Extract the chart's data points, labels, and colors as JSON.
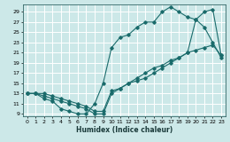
{
  "xlabel": "Humidex (Indice chaleur)",
  "bg_color": "#cce8e8",
  "grid_color": "#ffffff",
  "line_color": "#1a6b6b",
  "xlim": [
    -0.5,
    23.5
  ],
  "ylim": [
    8.5,
    30.5
  ],
  "xticks": [
    0,
    1,
    2,
    3,
    4,
    5,
    6,
    7,
    8,
    9,
    10,
    11,
    12,
    13,
    14,
    15,
    16,
    17,
    18,
    19,
    20,
    21,
    22,
    23
  ],
  "yticks": [
    9,
    11,
    13,
    15,
    17,
    19,
    21,
    23,
    25,
    27,
    29
  ],
  "curve1_x": [
    0,
    1,
    2,
    3,
    4,
    5,
    6,
    7,
    8,
    9,
    10,
    11,
    12,
    13,
    14,
    15,
    16,
    17,
    18,
    19,
    20,
    21,
    22,
    23
  ],
  "curve1_y": [
    13,
    13,
    12,
    11.5,
    10,
    9.5,
    9,
    9,
    11,
    15,
    22,
    24,
    24.5,
    26,
    27,
    27,
    29,
    30,
    29,
    28,
    27.5,
    26,
    23,
    20
  ],
  "curve2_x": [
    0,
    1,
    2,
    3,
    4,
    5,
    6,
    7,
    8,
    9,
    10,
    11,
    12,
    13,
    14,
    15,
    16,
    17,
    18,
    19,
    20,
    21,
    22,
    23
  ],
  "curve2_y": [
    13,
    13,
    12.5,
    12,
    11.5,
    11,
    10.5,
    10,
    9,
    9,
    13,
    14,
    15,
    16,
    17,
    18,
    18.5,
    19.5,
    20,
    21,
    27.5,
    29,
    29.5,
    20.5
  ],
  "curve3_x": [
    0,
    1,
    2,
    3,
    4,
    5,
    6,
    7,
    8,
    9,
    10,
    11,
    12,
    13,
    14,
    15,
    16,
    17,
    18,
    19,
    20,
    21,
    22,
    23
  ],
  "curve3_y": [
    13,
    13,
    13,
    12.5,
    12,
    11.5,
    11,
    10.5,
    9.5,
    9.5,
    13.5,
    14,
    15,
    15.5,
    16,
    17,
    18,
    19,
    20,
    21,
    21.5,
    22,
    22.5,
    20.5
  ]
}
